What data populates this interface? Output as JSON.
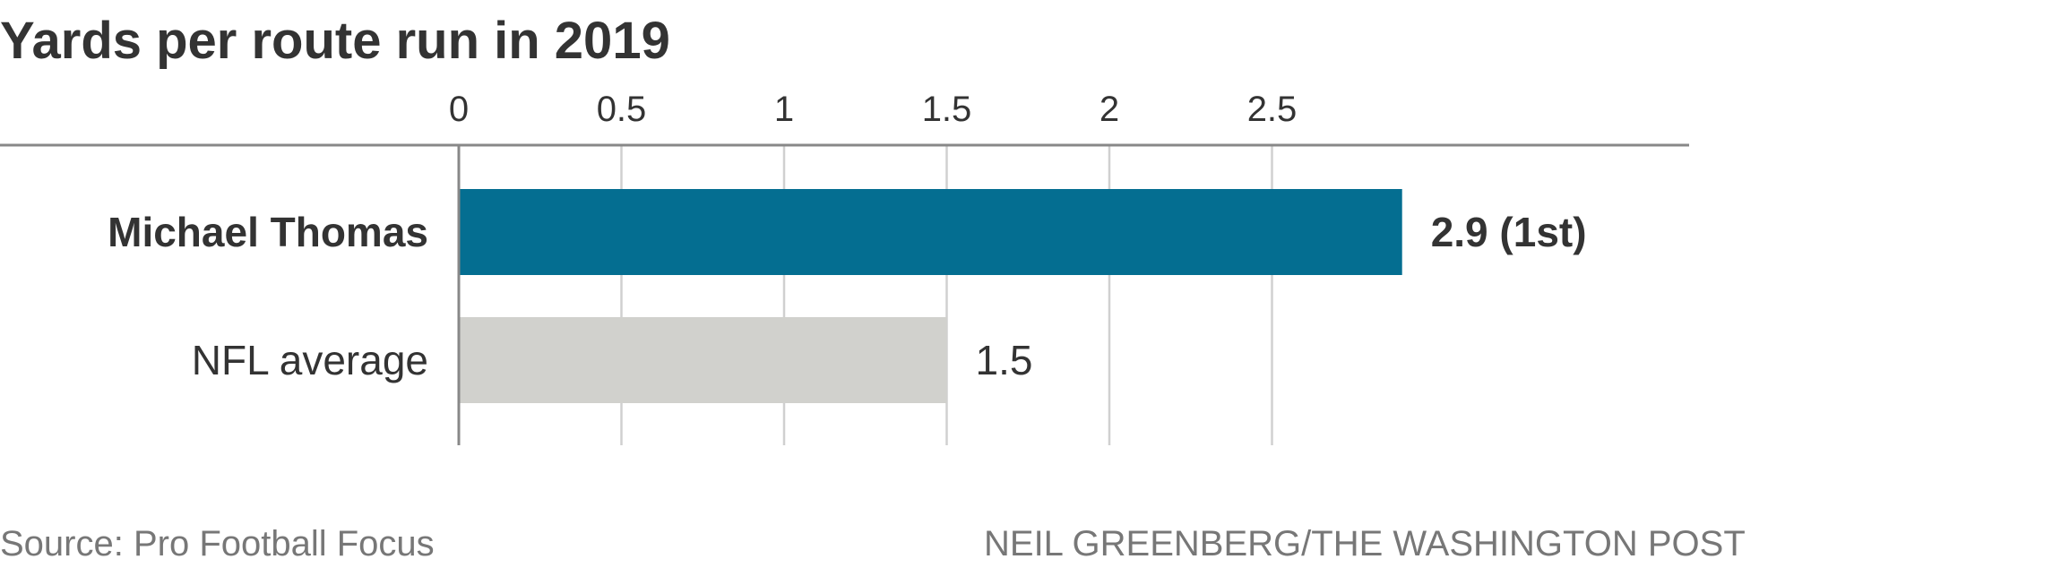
{
  "chart_data": {
    "type": "bar",
    "orientation": "horizontal",
    "title": "Yards per route run in 2019",
    "categories": [
      "Michael Thomas",
      "NFL average"
    ],
    "values": [
      2.9,
      1.5
    ],
    "value_labels": [
      "2.9 (1st)",
      "1.5"
    ],
    "category_emphasis": [
      "bold",
      "normal"
    ],
    "bar_colors": [
      "#046E91",
      "#D1D1CD"
    ],
    "x_ticks": [
      0,
      0.5,
      1,
      1.5,
      2,
      2.5
    ],
    "x_tick_labels": [
      "0",
      "0.5",
      "1",
      "1.5",
      "2",
      "2.5"
    ],
    "xlim": [
      0,
      3.8
    ],
    "grid": true,
    "xlabel": "",
    "ylabel": ""
  },
  "footer": {
    "source": "Source: Pro Football Focus",
    "credit": "NEIL GREENBERG/THE WASHINGTON POST"
  },
  "colors": {
    "text_dark": "#333333",
    "text_muted": "#777777",
    "axis": "#888888",
    "grid": "#D0D0D0"
  }
}
